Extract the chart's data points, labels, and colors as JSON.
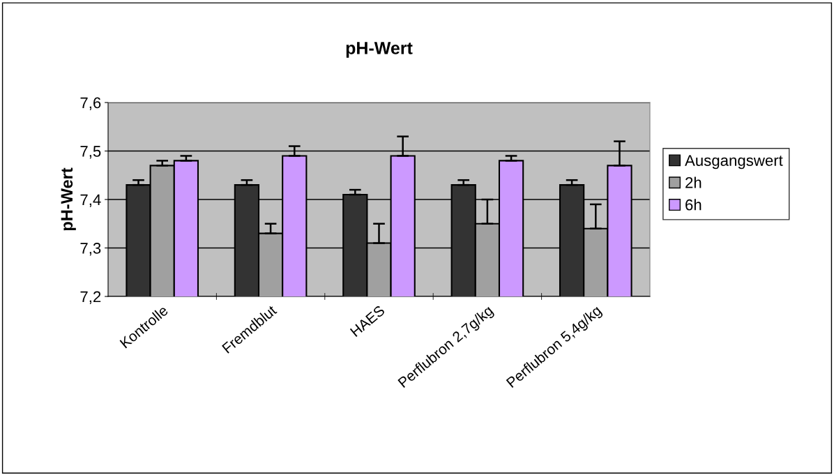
{
  "chart_data": {
    "type": "bar",
    "title": "pH-Wert",
    "ylabel": "pH-Wert",
    "categories": [
      "Kontrolle",
      "Fremdblut",
      "HAES",
      "Perflubron 2,7g/kg",
      "Perflubron 5,4g/kg"
    ],
    "series": [
      {
        "name": "Ausgangswert",
        "color": "#333333",
        "values": [
          7.43,
          7.43,
          7.41,
          7.43,
          7.43
        ],
        "errors": [
          [
            7.43,
            7.44
          ],
          [
            7.43,
            7.44
          ],
          [
            7.41,
            7.42
          ],
          [
            7.43,
            7.44
          ],
          [
            7.43,
            7.44
          ]
        ]
      },
      {
        "name": "2h",
        "color": "#a0a0a0",
        "values": [
          7.47,
          7.33,
          7.31,
          7.35,
          7.34
        ],
        "errors": [
          [
            7.47,
            7.48
          ],
          [
            7.33,
            7.35
          ],
          [
            7.31,
            7.35
          ],
          [
            7.35,
            7.4
          ],
          [
            7.34,
            7.39
          ]
        ]
      },
      {
        "name": "6h",
        "color": "#cc99ff",
        "values": [
          7.48,
          7.49,
          7.49,
          7.48,
          7.47
        ],
        "errors": [
          [
            7.48,
            7.49
          ],
          [
            7.49,
            7.51
          ],
          [
            7.49,
            7.53
          ],
          [
            7.48,
            7.49
          ],
          [
            7.47,
            7.52
          ]
        ]
      }
    ],
    "ylim": [
      7.2,
      7.6
    ],
    "yticks": [
      {
        "value": 7.2,
        "label": "7,2"
      },
      {
        "value": 7.3,
        "label": "7,3"
      },
      {
        "value": 7.4,
        "label": "7,4"
      },
      {
        "value": 7.5,
        "label": "7,5"
      },
      {
        "value": 7.6,
        "label": "7,6"
      }
    ],
    "grid": "y",
    "legend": "right"
  }
}
